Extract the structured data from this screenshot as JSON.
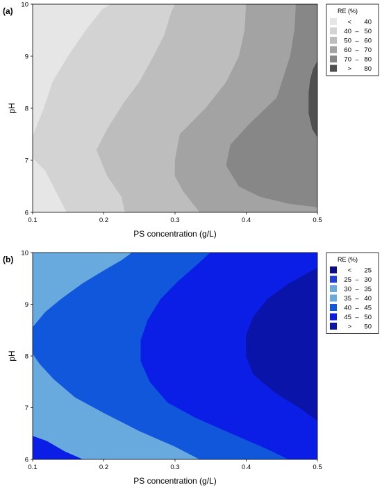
{
  "chart_data": [
    {
      "type": "contour",
      "panel_label": "(a)",
      "xlabel": "PS concentration (g/L)",
      "ylabel": "pH",
      "xlim": [
        0.1,
        0.5
      ],
      "ylim": [
        6,
        10
      ],
      "x_ticks": [
        "0.1",
        "0.2",
        "0.3",
        "0.4",
        "0.5"
      ],
      "y_ticks": [
        "6",
        "7",
        "8",
        "9",
        "10"
      ],
      "legend_title": "RE (%)",
      "legend_position": "right",
      "levels": [
        {
          "low": "<",
          "high": "40",
          "color": "#e6e6e6"
        },
        {
          "low": "40",
          "high": "50",
          "color": "#d3d3d3"
        },
        {
          "low": "50",
          "high": "60",
          "color": "#bdbdbd"
        },
        {
          "low": "60",
          "high": "70",
          "color": "#a3a3a3"
        },
        {
          "low": "70",
          "high": "80",
          "color": "#878787"
        },
        {
          "low": ">",
          "high": "80",
          "color": "#505050"
        }
      ],
      "regions": [
        {
          "level": 1,
          "points": [
            [
              0.1,
              6
            ],
            [
              0.5,
              6
            ],
            [
              0.5,
              10
            ],
            [
              0.1,
              10
            ]
          ]
        },
        {
          "level": 2,
          "points": [
            [
              0.148,
              6
            ],
            [
              0.5,
              6
            ],
            [
              0.5,
              10
            ],
            [
              0.21,
              10
            ],
            [
              0.198,
              9.9
            ],
            [
              0.175,
              9.5
            ],
            [
              0.15,
              9.0
            ],
            [
              0.128,
              8.5
            ],
            [
              0.116,
              8.0
            ],
            [
              0.1,
              7.45
            ],
            [
              0.1,
              7.05
            ],
            [
              0.118,
              6.8
            ],
            [
              0.133,
              6.4
            ]
          ]
        },
        {
          "level": 3,
          "points": [
            [
              0.23,
              6
            ],
            [
              0.5,
              6
            ],
            [
              0.5,
              10
            ],
            [
              0.3,
              10
            ],
            [
              0.295,
              9.85
            ],
            [
              0.285,
              9.4
            ],
            [
              0.27,
              9.0
            ],
            [
              0.25,
              8.5
            ],
            [
              0.228,
              8.1
            ],
            [
              0.205,
              7.6
            ],
            [
              0.19,
              7.2
            ],
            [
              0.205,
              6.7
            ],
            [
              0.225,
              6.3
            ]
          ]
        },
        {
          "level": 4,
          "points": [
            [
              0.335,
              6
            ],
            [
              0.5,
              6
            ],
            [
              0.5,
              10
            ],
            [
              0.4,
              10
            ],
            [
              0.398,
              9.5
            ],
            [
              0.39,
              9.0
            ],
            [
              0.372,
              8.5
            ],
            [
              0.343,
              8.0
            ],
            [
              0.307,
              7.5
            ],
            [
              0.3,
              7.0
            ],
            [
              0.3,
              6.7
            ],
            [
              0.312,
              6.4
            ]
          ]
        },
        {
          "level": 5,
          "points": [
            [
              0.5,
              6.1
            ],
            [
              0.5,
              10
            ],
            [
              0.47,
              10
            ],
            [
              0.468,
              9.5
            ],
            [
              0.462,
              9.0
            ],
            [
              0.443,
              8.2
            ],
            [
              0.405,
              7.7
            ],
            [
              0.378,
              7.3
            ],
            [
              0.372,
              6.9
            ],
            [
              0.39,
              6.5
            ],
            [
              0.42,
              6.3
            ],
            [
              0.46,
              6.17
            ]
          ]
        },
        {
          "level": 6,
          "points": [
            [
              0.5,
              8.9
            ],
            [
              0.5,
              7.45
            ],
            [
              0.493,
              7.6
            ],
            [
              0.488,
              7.9
            ],
            [
              0.488,
              8.3
            ],
            [
              0.49,
              8.55
            ],
            [
              0.494,
              8.75
            ]
          ]
        }
      ]
    },
    {
      "type": "contour",
      "panel_label": "(b)",
      "xlabel": "PS concentration (g/L)",
      "ylabel": "pH",
      "xlim": [
        0.1,
        0.5
      ],
      "ylim": [
        6,
        10
      ],
      "x_ticks": [
        "0.1",
        "0.2",
        "0.3",
        "0.4",
        "0.5"
      ],
      "y_ticks": [
        "6",
        "7",
        "8",
        "9",
        "10"
      ],
      "legend_title": "RE (%)",
      "legend_position": "right",
      "levels": [
        {
          "low": "<",
          "high": "25",
          "color": "#0c0c8a"
        },
        {
          "low": "25",
          "high": "30",
          "color": "#1f3fd6"
        },
        {
          "low": "30",
          "high": "35",
          "color": "#68a9de"
        },
        {
          "low": "35",
          "high": "40",
          "color": "#68a9de"
        },
        {
          "low": "40",
          "high": "45",
          "color": "#1057dc"
        },
        {
          "low": "45",
          "high": "50",
          "color": "#0a1ee6"
        },
        {
          "low": ">",
          "high": "50",
          "color": "#0a14a8"
        }
      ],
      "regions": [
        {
          "level": 4,
          "points": [
            [
              0.1,
              6
            ],
            [
              0.5,
              6
            ],
            [
              0.5,
              10
            ],
            [
              0.1,
              10
            ]
          ]
        },
        {
          "level": 5,
          "points": [
            [
              0.1,
              8.55
            ],
            [
              0.118,
              8.85
            ],
            [
              0.14,
              9.1
            ],
            [
              0.17,
              9.4
            ],
            [
              0.2,
              9.65
            ],
            [
              0.225,
              9.85
            ],
            [
              0.24,
              10
            ],
            [
              0.5,
              10
            ],
            [
              0.5,
              6
            ],
            [
              0.335,
              6
            ],
            [
              0.3,
              6.25
            ],
            [
              0.25,
              6.55
            ],
            [
              0.2,
              6.9
            ],
            [
              0.16,
              7.2
            ],
            [
              0.13,
              7.55
            ],
            [
              0.11,
              7.85
            ],
            [
              0.1,
              8.05
            ]
          ]
        },
        {
          "level": 6,
          "points": [
            [
              0.35,
              10
            ],
            [
              0.5,
              10
            ],
            [
              0.5,
              6
            ],
            [
              0.46,
              6
            ],
            [
              0.43,
              6.2
            ],
            [
              0.38,
              6.5
            ],
            [
              0.33,
              6.8
            ],
            [
              0.29,
              7.1
            ],
            [
              0.265,
              7.5
            ],
            [
              0.252,
              7.9
            ],
            [
              0.252,
              8.3
            ],
            [
              0.262,
              8.7
            ],
            [
              0.28,
              9.1
            ],
            [
              0.305,
              9.45
            ],
            [
              0.33,
              9.75
            ]
          ]
        },
        {
          "level": 7,
          "points": [
            [
              0.5,
              9.7
            ],
            [
              0.5,
              6.75
            ],
            [
              0.475,
              7.0
            ],
            [
              0.44,
              7.3
            ],
            [
              0.41,
              7.65
            ],
            [
              0.4,
              8.0
            ],
            [
              0.4,
              8.4
            ],
            [
              0.41,
              8.75
            ],
            [
              0.43,
              9.1
            ],
            [
              0.46,
              9.4
            ]
          ]
        },
        {
          "level": 6,
          "points": [
            [
              0.1,
              6.45
            ],
            [
              0.1,
              6
            ],
            [
              0.17,
              6
            ],
            [
              0.145,
              6.15
            ],
            [
              0.12,
              6.35
            ]
          ]
        }
      ]
    }
  ]
}
